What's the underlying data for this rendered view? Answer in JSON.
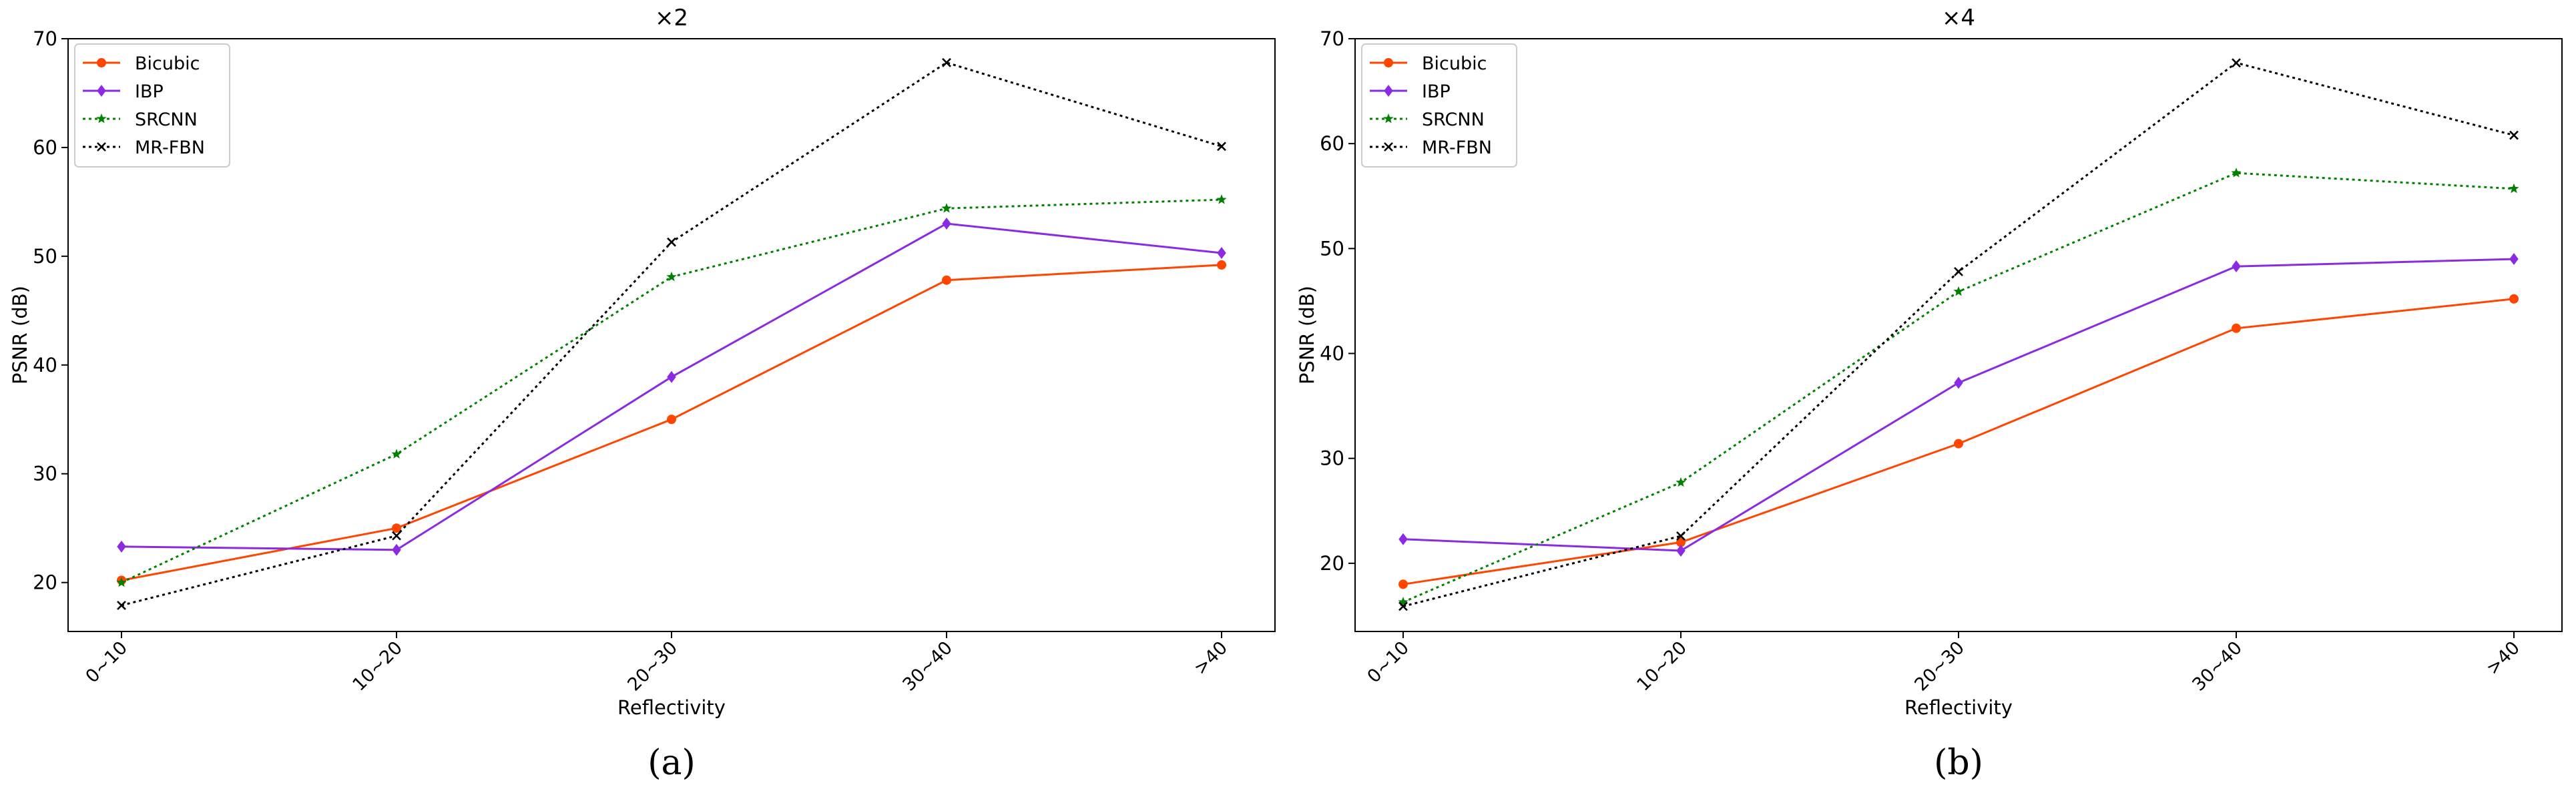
{
  "panels": [
    {
      "caption": "(a)",
      "chart_data": {
        "type": "line",
        "title": "×2",
        "xlabel": "Reflectivity",
        "ylabel": "PSNR (dB)",
        "categories": [
          "0~10",
          "10~20",
          "20~30",
          "30~40",
          ">40"
        ],
        "ylim": [
          15.5,
          70
        ],
        "yticks": [
          20,
          30,
          40,
          50,
          60,
          70
        ],
        "legend_position": "top-left",
        "grid": false,
        "series": [
          {
            "name": "Bicubic",
            "values": [
              20.2,
              25.0,
              35.0,
              47.8,
              49.2
            ]
          },
          {
            "name": "IBP",
            "values": [
              23.3,
              23.0,
              38.9,
              53.0,
              50.3
            ]
          },
          {
            "name": "SRCNN",
            "values": [
              20.0,
              31.8,
              48.1,
              54.4,
              55.2
            ]
          },
          {
            "name": "MR-FBN",
            "values": [
              17.9,
              24.3,
              51.3,
              67.8,
              60.1
            ]
          }
        ]
      }
    },
    {
      "caption": "(b)",
      "chart_data": {
        "type": "line",
        "title": "×4",
        "xlabel": "Reflectivity",
        "ylabel": "PSNR (dB)",
        "categories": [
          "0~10",
          "10~20",
          "20~30",
          "30~40",
          ">40"
        ],
        "ylim": [
          13.5,
          70
        ],
        "yticks": [
          20,
          30,
          40,
          50,
          60,
          70
        ],
        "legend_position": "top-left",
        "grid": false,
        "series": [
          {
            "name": "Bicubic",
            "values": [
              18.0,
              22.0,
              31.4,
              42.4,
              45.2
            ]
          },
          {
            "name": "IBP",
            "values": [
              22.3,
              21.2,
              37.2,
              48.3,
              49.0
            ]
          },
          {
            "name": "SRCNN",
            "values": [
              16.3,
              27.7,
              45.9,
              57.2,
              55.7
            ]
          },
          {
            "name": "MR-FBN",
            "values": [
              15.9,
              22.6,
              47.8,
              67.7,
              60.8
            ]
          }
        ]
      }
    }
  ],
  "series_styles": {
    "Bicubic": {
      "color": "#ff4500",
      "dash": "solid",
      "marker": "circle"
    },
    "IBP": {
      "color": "#8a2be2",
      "dash": "solid",
      "marker": "diamond"
    },
    "SRCNN": {
      "color": "#008000",
      "dash": "dotted",
      "marker": "star"
    },
    "MR-FBN": {
      "color": "#000000",
      "dash": "dotted",
      "marker": "x"
    }
  }
}
